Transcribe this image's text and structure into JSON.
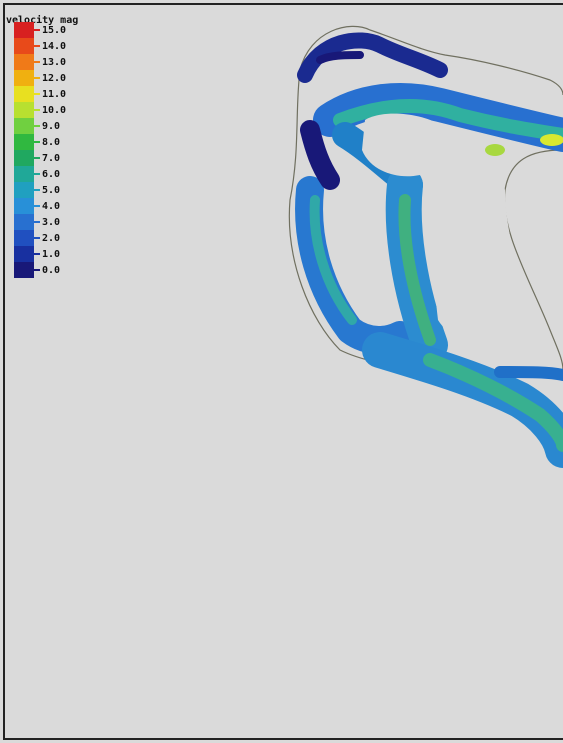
{
  "legend": {
    "title": "velocity mag",
    "items": [
      {
        "label": "15.0",
        "color": "#d82020"
      },
      {
        "label": "14.0",
        "color": "#e84a1a"
      },
      {
        "label": "13.0",
        "color": "#f07a18"
      },
      {
        "label": "12.0",
        "color": "#f0b010"
      },
      {
        "label": "11.0",
        "color": "#e8e020"
      },
      {
        "label": "10.0",
        "color": "#b8e030"
      },
      {
        "label": "9.0",
        "color": "#70d040"
      },
      {
        "label": "8.0",
        "color": "#30b840"
      },
      {
        "label": "7.0",
        "color": "#20a860"
      },
      {
        "label": "6.0",
        "color": "#20a898"
      },
      {
        "label": "5.0",
        "color": "#20a0c0"
      },
      {
        "label": "4.0",
        "color": "#2890d8"
      },
      {
        "label": "3.0",
        "color": "#2870d0"
      },
      {
        "label": "2.0",
        "color": "#2050c0"
      },
      {
        "label": "1.0",
        "color": "#1830a0"
      },
      {
        "label": "0.0",
        "color": "#181878"
      }
    ]
  }
}
